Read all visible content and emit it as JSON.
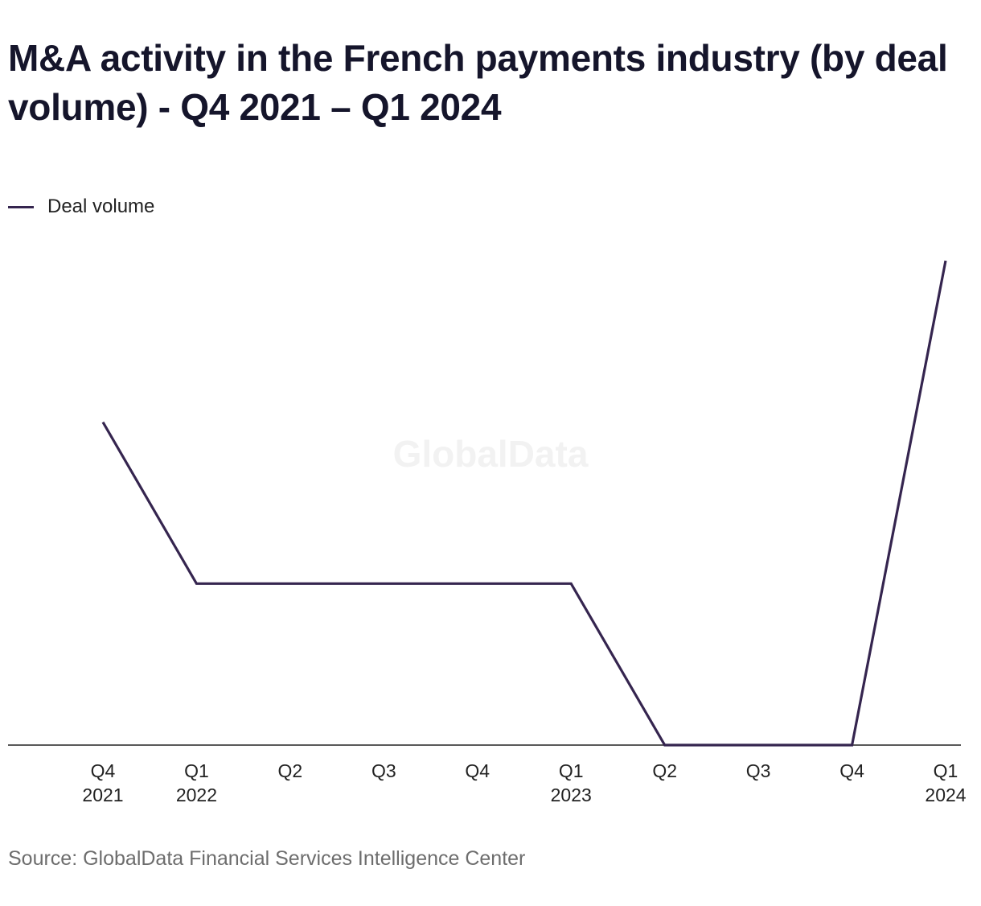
{
  "chart_data": {
    "type": "line",
    "title": "M&A activity in the French payments industry (by deal volume) - Q4 2021 – Q1 2024",
    "xlabel": "",
    "ylabel": "",
    "categories": [
      [
        "Q4",
        "2021"
      ],
      [
        "Q1",
        "2022"
      ],
      [
        "Q2",
        ""
      ],
      [
        "Q3",
        ""
      ],
      [
        "Q4",
        ""
      ],
      [
        "Q1",
        "2023"
      ],
      [
        "Q2",
        ""
      ],
      [
        "Q3",
        ""
      ],
      [
        "Q4",
        ""
      ],
      [
        "Q1",
        "2024"
      ]
    ],
    "series": [
      {
        "name": "Deal volume",
        "values": [
          2,
          1,
          1,
          1,
          1,
          1,
          0,
          0,
          0,
          3
        ],
        "color": "#35254f"
      }
    ],
    "ylim": [
      0,
      3
    ],
    "grid": false,
    "legend_position": "top-left",
    "watermark": "GlobalData",
    "source": "Source: GlobalData Financial Services Intelligence Center"
  }
}
